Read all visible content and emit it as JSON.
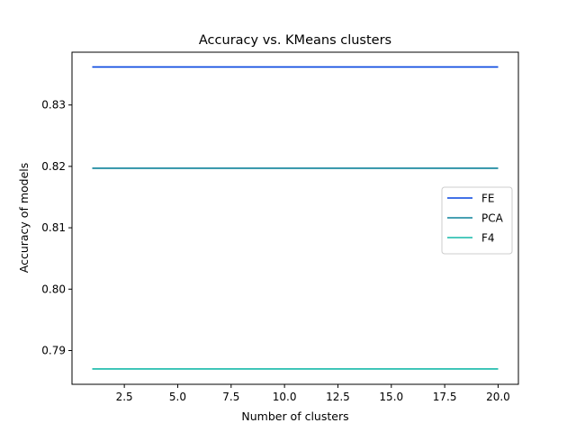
{
  "chart_data": {
    "type": "line",
    "title": "Accuracy vs. KMeans clusters",
    "xlabel": "Number of clusters",
    "ylabel": "Accuracy of models",
    "xlim": [
      0.05,
      20.95
    ],
    "ylim": [
      0.7845,
      0.8386
    ],
    "xticks": [
      2.5,
      5.0,
      7.5,
      10.0,
      12.5,
      15.0,
      17.5,
      20.0
    ],
    "xtick_labels": [
      "2.5",
      "5.0",
      "7.5",
      "10.0",
      "12.5",
      "15.0",
      "17.5",
      "20.0"
    ],
    "yticks": [
      0.79,
      0.8,
      0.81,
      0.82,
      0.83
    ],
    "ytick_labels": [
      "0.79",
      "0.80",
      "0.81",
      "0.82",
      "0.83"
    ],
    "grid": false,
    "legend_position": "center-right",
    "series": [
      {
        "name": "FE",
        "color": "#0343df",
        "x": [
          1,
          20
        ],
        "y": [
          0.8362,
          0.8362
        ]
      },
      {
        "name": "PCA",
        "color": "#0b8199",
        "x": [
          1,
          20
        ],
        "y": [
          0.8197,
          0.8197
        ]
      },
      {
        "name": "F4",
        "color": "#15b8a8",
        "x": [
          1,
          20
        ],
        "y": [
          0.787,
          0.787
        ]
      }
    ]
  }
}
